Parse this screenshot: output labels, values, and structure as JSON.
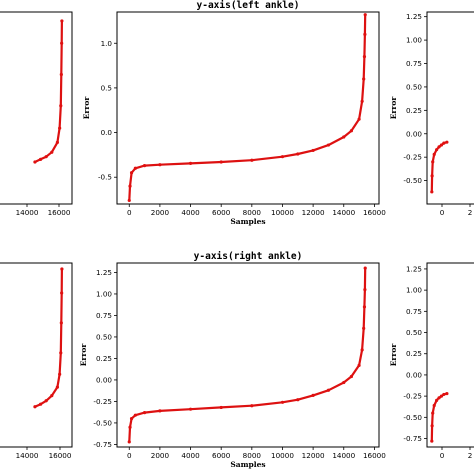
{
  "chart_data": [
    {
      "type": "line",
      "title": "",
      "xlabel": "",
      "ylabel": "",
      "xlim": [
        -800,
        16300
      ],
      "ylim": [
        -0.8,
        1.35
      ],
      "xticks": [],
      "xtick_labels": [
        "14000",
        "16000"
      ],
      "yticks": [],
      "series": [
        {
          "name": "",
          "color": "#dd1111",
          "x": [
            13000,
            13500,
            14000,
            14500,
            15000,
            15200,
            15300,
            15350,
            15380,
            15400
          ],
          "y": [
            -0.33,
            -0.3,
            -0.27,
            -0.22,
            -0.11,
            0.05,
            0.3,
            0.65,
            1.0,
            1.25
          ]
        }
      ]
    },
    {
      "type": "line",
      "title": "y-axis(left ankle)",
      "xlabel": "Samples",
      "ylabel": "Error",
      "xlim": [
        -800,
        16300
      ],
      "ylim": [
        -0.8,
        1.35
      ],
      "xticks": [
        0,
        2000,
        4000,
        6000,
        8000,
        10000,
        12000,
        14000,
        16000
      ],
      "yticks": [
        -0.5,
        0.0,
        0.5,
        1.0
      ],
      "series": [
        {
          "name": "",
          "color": "#dd1111",
          "x": [
            0,
            50,
            150,
            400,
            1000,
            2000,
            4000,
            6000,
            8000,
            10000,
            11000,
            12000,
            13000,
            14000,
            14500,
            15000,
            15200,
            15300,
            15350,
            15380,
            15400
          ],
          "y": [
            -0.76,
            -0.6,
            -0.45,
            -0.4,
            -0.37,
            -0.36,
            -0.345,
            -0.33,
            -0.31,
            -0.27,
            -0.24,
            -0.2,
            -0.14,
            -0.05,
            0.02,
            0.15,
            0.35,
            0.6,
            0.85,
            1.1,
            1.32
          ]
        }
      ]
    },
    {
      "type": "line",
      "title": "",
      "xlabel": "",
      "ylabel": "Error",
      "xlim": [
        -800,
        16300
      ],
      "ylim": [
        -0.75,
        1.3
      ],
      "xticks": [
        0
      ],
      "xtick_labels": [
        "0",
        "2"
      ],
      "yticks": [
        -0.5,
        -0.25,
        0.0,
        0.25,
        0.5,
        0.75,
        1.0,
        1.25
      ],
      "series": [
        {
          "name": "",
          "color": "#dd1111",
          "x": [
            0,
            50,
            150,
            400,
            800,
            1200,
            1600,
            2000,
            2500
          ],
          "y": [
            -0.62,
            -0.45,
            -0.3,
            -0.22,
            -0.17,
            -0.14,
            -0.12,
            -0.1,
            -0.09
          ]
        }
      ]
    },
    {
      "type": "line",
      "title": "",
      "xlabel": "",
      "ylabel": "",
      "xlim": [
        -800,
        16300
      ],
      "ylim": [
        -0.8,
        1.35
      ],
      "xticks": [],
      "xtick_labels": [
        "14000",
        "16000"
      ],
      "yticks": [],
      "series": [
        {
          "name": "",
          "color": "#dd1111",
          "x": [
            13000,
            13500,
            14000,
            14500,
            15000,
            15200,
            15300,
            15350,
            15380,
            15400
          ],
          "y": [
            -0.33,
            -0.3,
            -0.26,
            -0.2,
            -0.1,
            0.05,
            0.3,
            0.65,
            1.0,
            1.28
          ]
        }
      ]
    },
    {
      "type": "line",
      "title": "y-axis(right ankle)",
      "xlabel": "Samples",
      "ylabel": "Error",
      "xlim": [
        -800,
        16300
      ],
      "ylim": [
        -0.78,
        1.36
      ],
      "xticks": [
        0,
        2000,
        4000,
        6000,
        8000,
        10000,
        12000,
        14000,
        16000
      ],
      "yticks": [
        -0.75,
        -0.5,
        -0.25,
        0.0,
        0.25,
        0.5,
        0.75,
        1.0,
        1.25
      ],
      "series": [
        {
          "name": "",
          "color": "#dd1111",
          "x": [
            0,
            50,
            150,
            400,
            1000,
            2000,
            4000,
            6000,
            8000,
            10000,
            11000,
            12000,
            13000,
            14000,
            14500,
            15000,
            15200,
            15300,
            15350,
            15380,
            15400
          ],
          "y": [
            -0.72,
            -0.55,
            -0.45,
            -0.41,
            -0.38,
            -0.36,
            -0.34,
            -0.32,
            -0.3,
            -0.26,
            -0.23,
            -0.18,
            -0.12,
            -0.03,
            0.04,
            0.17,
            0.35,
            0.6,
            0.85,
            1.05,
            1.3
          ]
        }
      ]
    },
    {
      "type": "line",
      "title": "",
      "xlabel": "",
      "ylabel": "Error",
      "xlim": [
        -800,
        16300
      ],
      "ylim": [
        -0.85,
        1.32
      ],
      "xticks": [
        0
      ],
      "xtick_labels": [
        "0",
        "2"
      ],
      "yticks": [
        -0.75,
        -0.5,
        -0.25,
        0.0,
        0.25,
        0.5,
        0.75,
        1.0,
        1.25
      ],
      "series": [
        {
          "name": "",
          "color": "#dd1111",
          "x": [
            0,
            50,
            150,
            400,
            800,
            1200,
            1600,
            2000,
            2500
          ],
          "y": [
            -0.78,
            -0.6,
            -0.45,
            -0.36,
            -0.3,
            -0.27,
            -0.25,
            -0.23,
            -0.22
          ]
        }
      ]
    }
  ]
}
